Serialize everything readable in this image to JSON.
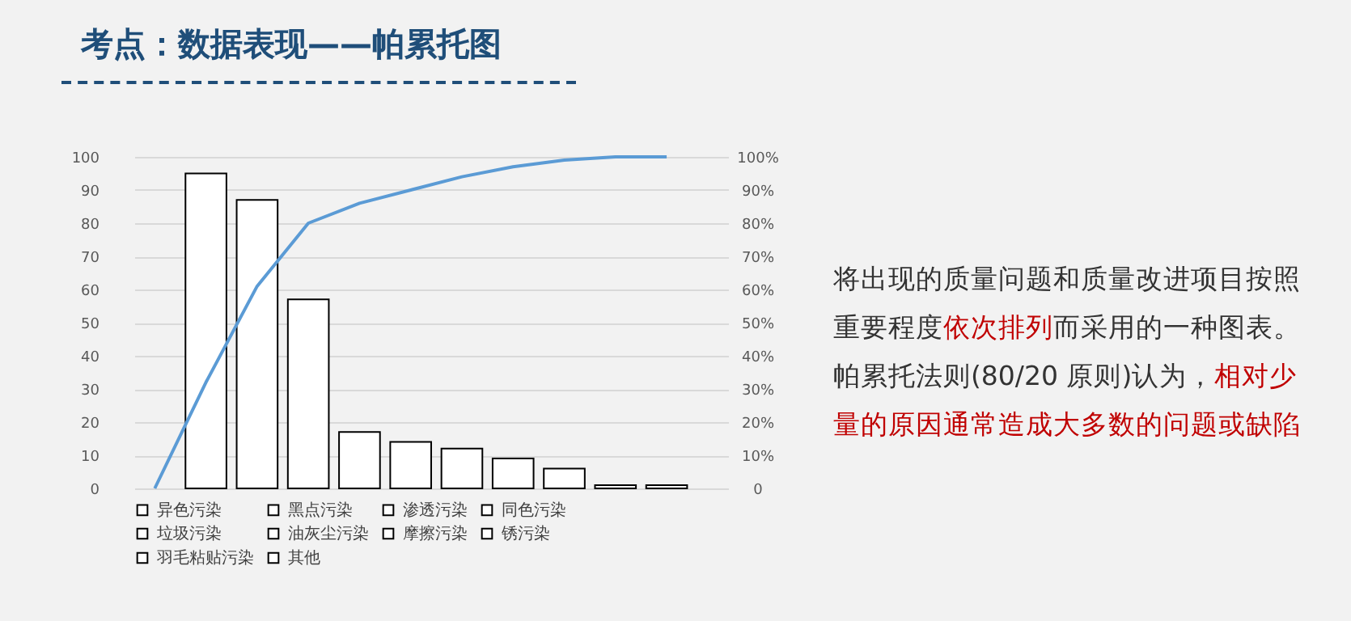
{
  "chart_data": {
    "type": "bar",
    "title": "考点：数据表现——帕累托图",
    "annotations": [
      "将出现的质量问题和质量改进项目按照重要程度",
      "依次排列",
      "而采用的一种图表。帕累托法则(80/20 原则)认为，",
      "相对少量的原因通常造成大多数的问题或缺陷"
    ],
    "categories": [
      null,
      null,
      null,
      null,
      null,
      null,
      null,
      null,
      null,
      null,
      null
    ],
    "tick_labels": "y",
    "series": [
      {
        "name": "异色污染",
        "color": "#ffffff",
        "values": [
          null,
          95,
          null,
          null,
          null,
          null,
          null,
          null,
          null,
          null,
          null
        ]
      },
      {
        "name": "黑点污染",
        "color": "#ffffff",
        "values": [
          null,
          null,
          87,
          null,
          null,
          null,
          null,
          null,
          null,
          null,
          null
        ]
      },
      {
        "name": "渗透污染",
        "color": "#ffffff",
        "values": [
          null,
          null,
          null,
          57,
          null,
          null,
          null,
          null,
          null,
          null,
          null
        ]
      },
      {
        "name": "同色污染",
        "color": "#ffffff",
        "values": [
          null,
          null,
          null,
          null,
          17,
          null,
          null,
          null,
          null,
          null,
          null
        ]
      },
      {
        "name": "垃圾污染",
        "color": "#ffffff",
        "values": [
          null,
          null,
          null,
          null,
          null,
          14,
          null,
          null,
          null,
          null,
          null
        ]
      },
      {
        "name": "油灰尘污染",
        "color": "#ffffff",
        "values": [
          null,
          null,
          null,
          null,
          null,
          null,
          12,
          null,
          null,
          null,
          null
        ]
      },
      {
        "name": "摩擦污染",
        "color": "#ffffff",
        "values": [
          null,
          null,
          null,
          null,
          null,
          null,
          null,
          9,
          null,
          null,
          null
        ]
      },
      {
        "name": "锈污染",
        "color": "#ffffff",
        "values": [
          null,
          null,
          null,
          null,
          null,
          null,
          null,
          null,
          6,
          null,
          null
        ]
      },
      {
        "name": "羽毛粘贴污染",
        "color": "#ffffff",
        "values": [
          null,
          null,
          null,
          null,
          null,
          null,
          null,
          null,
          null,
          1,
          null
        ]
      },
      {
        "name": "其他",
        "color": "#ffffff",
        "values": [
          null,
          null,
          null,
          null,
          null,
          null,
          null,
          null,
          null,
          null,
          1
        ]
      },
      {
        "type": "line",
        "axis": "y2",
        "color": "#5b9bd5",
        "values": [
          0,
          32,
          61,
          80,
          86,
          90,
          94,
          97,
          99,
          100,
          100
        ]
      }
    ],
    "ylim": [
      0,
      100
    ],
    "yticks": [
      0,
      10,
      20,
      30,
      40,
      50,
      60,
      70,
      80,
      90,
      100
    ],
    "y2lim": [
      0,
      100
    ],
    "y2ticks": [
      0,
      {
        "value": 10,
        "label": "10%"
      },
      {
        "value": 20,
        "label": "20%"
      },
      {
        "value": 30,
        "label": "30%"
      },
      {
        "value": 40,
        "label": "40%"
      },
      {
        "value": 50,
        "label": "50%"
      },
      {
        "value": 60,
        "label": "60%"
      },
      {
        "value": 70,
        "label": "70%"
      },
      {
        "value": 80,
        "label": "80%"
      },
      {
        "value": 90,
        "label": "90%"
      },
      {
        "value": 100,
        "label": "100%"
      }
    ],
    "grid": "y",
    "legend": "bottom"
  }
}
